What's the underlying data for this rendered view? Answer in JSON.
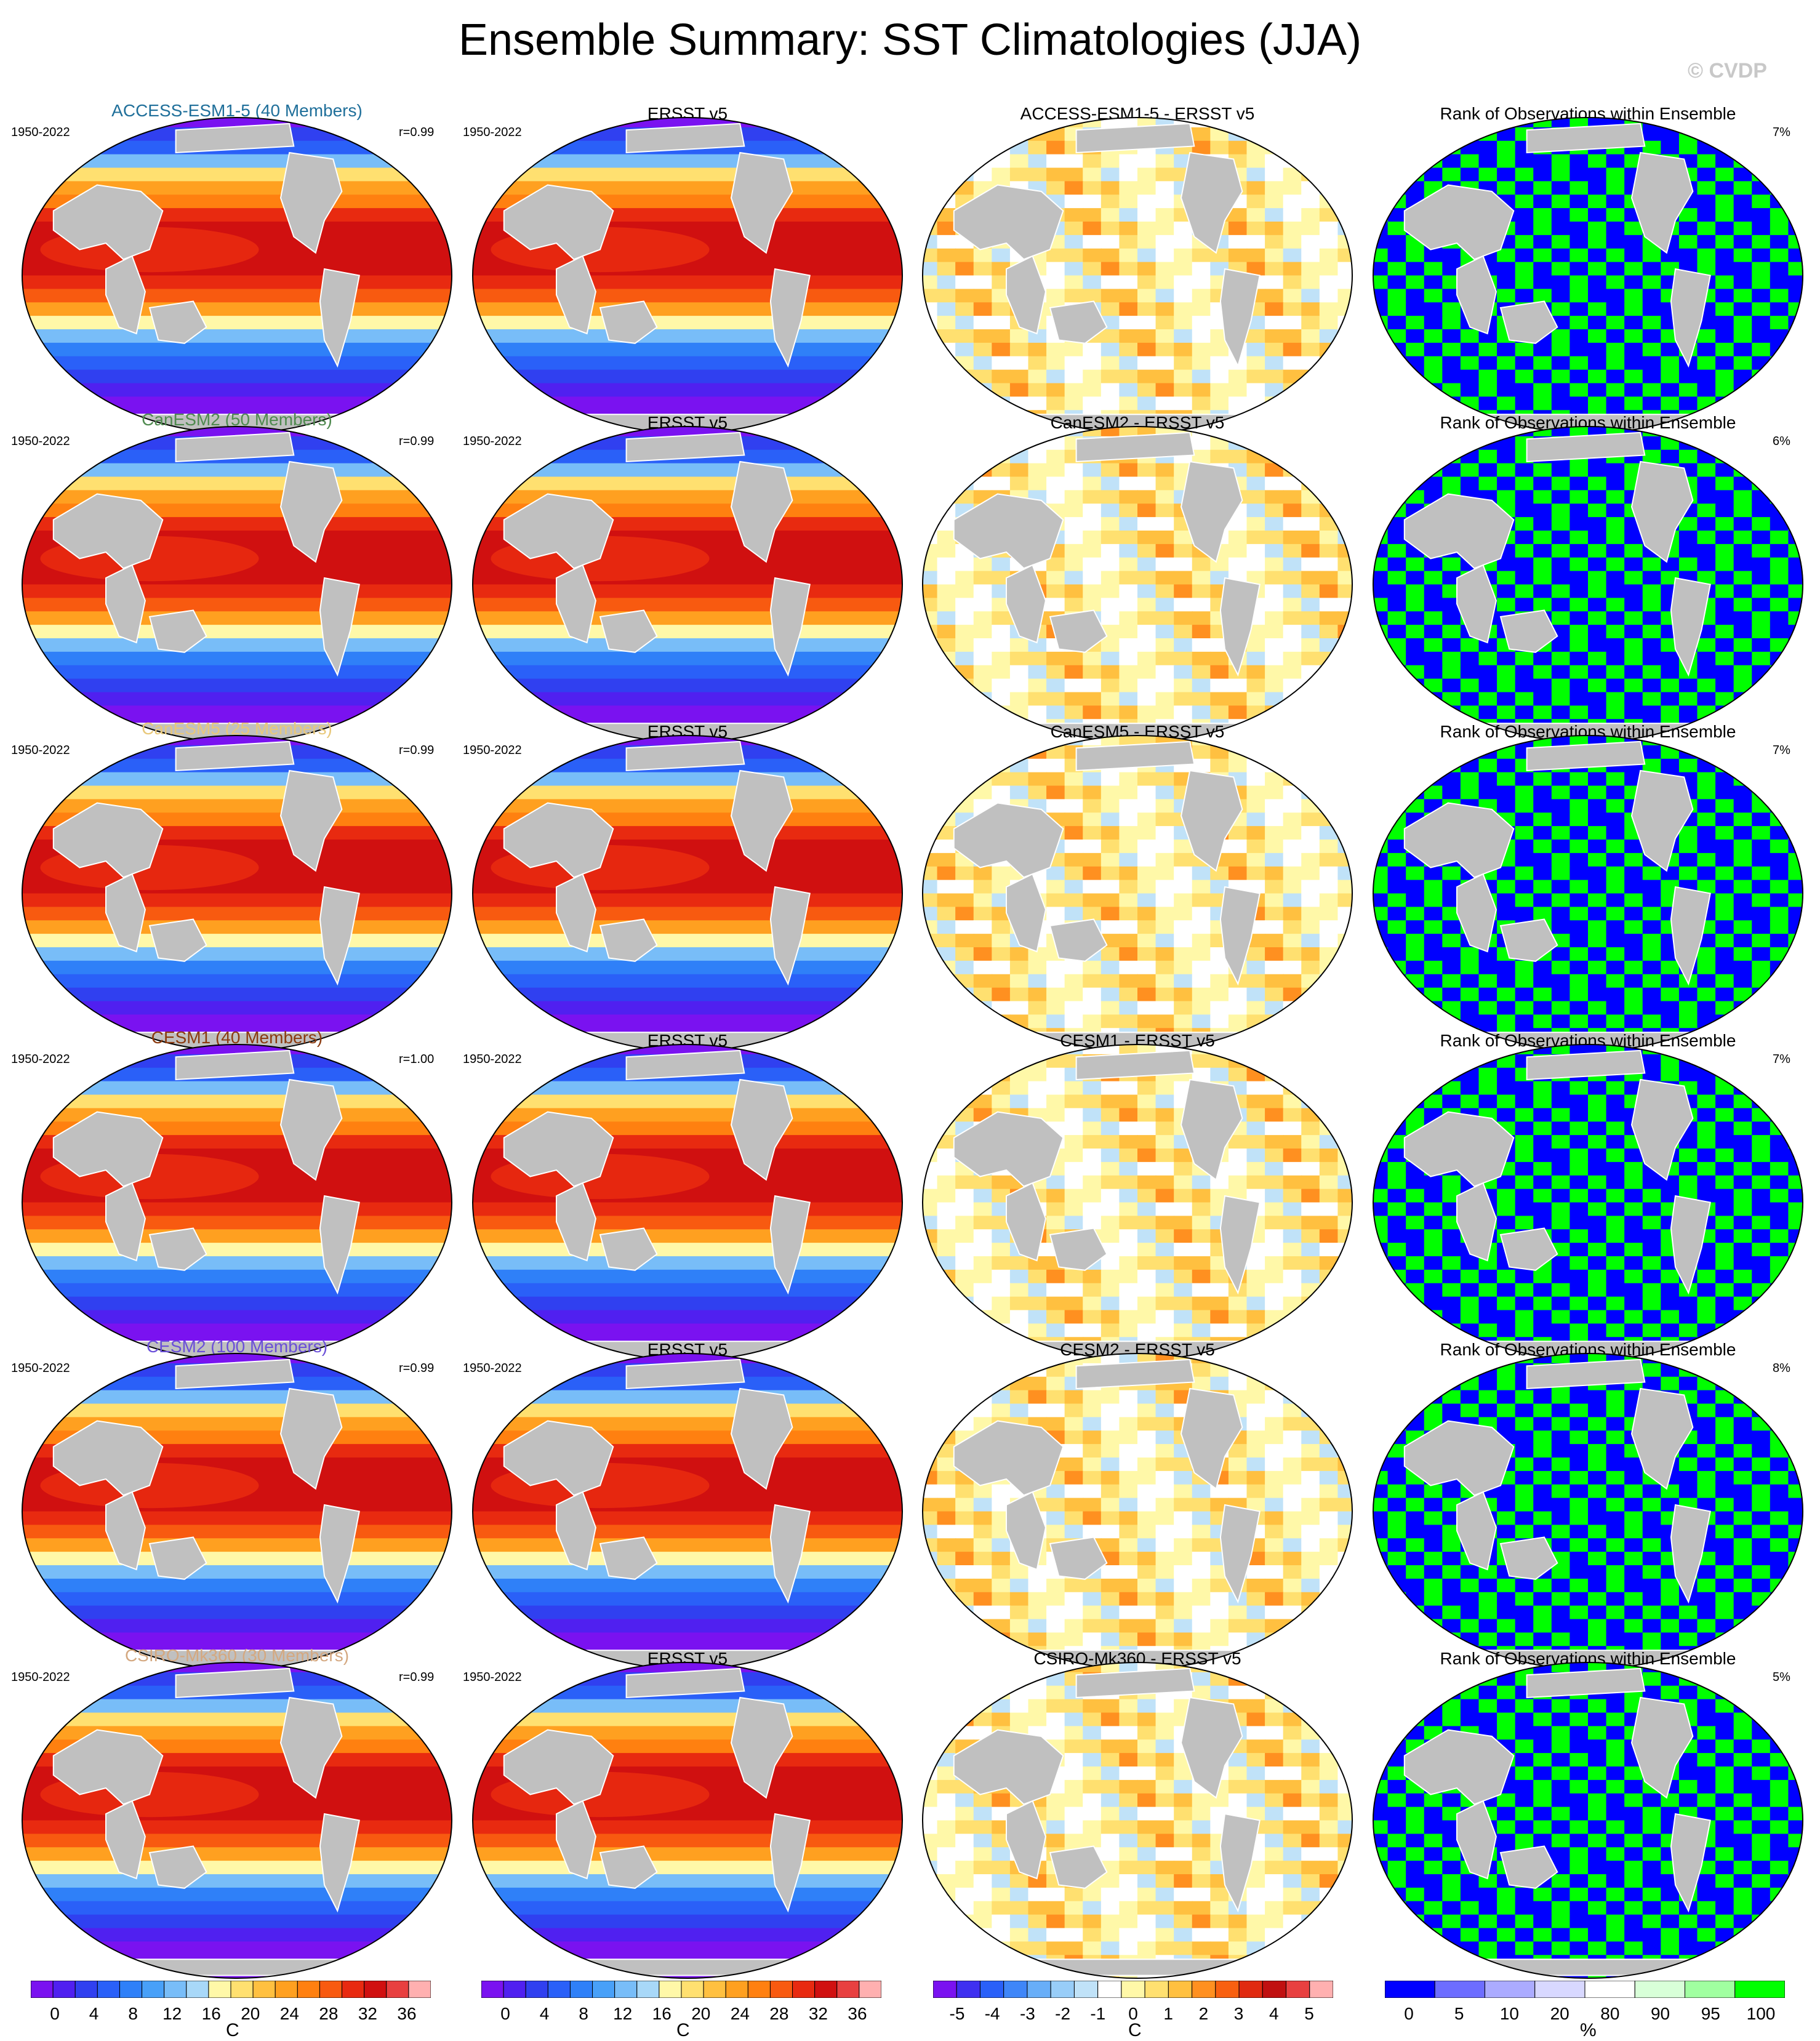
{
  "title": "Ensemble Summary: SST Climatologies (JJA)",
  "watermark": "© CVDP",
  "colors": {
    "model_title_colors": [
      "#1f6f9a",
      "#4f8a4f",
      "#e8c87a",
      "#8b3a0f",
      "#6a4fd8",
      "#d4a880"
    ],
    "land": "#c0c0c0",
    "sst_palette": [
      "#7a12f0",
      "#5020f0",
      "#3040f0",
      "#2a60f8",
      "#2f80f8",
      "#48a0f8",
      "#78bdf8",
      "#a8d8f8",
      "#fff8a8",
      "#ffe070",
      "#ffc040",
      "#ffa020",
      "#ff8010",
      "#f85a10",
      "#e82a10",
      "#d01010",
      "#e84040",
      "#ffb0b0"
    ],
    "diff_palette": [
      "#7a12f0",
      "#3f30f0",
      "#2a60f8",
      "#3f86f8",
      "#68aef8",
      "#98cdf8",
      "#c0e2f8",
      "#ffffff",
      "#fff8a8",
      "#ffe070",
      "#ffc040",
      "#ff9020",
      "#f86010",
      "#e02a10",
      "#c01010",
      "#e84040",
      "#ffb0b0"
    ],
    "rank_palette": [
      "#0000ff",
      "#6d6dff",
      "#ababff",
      "#d8d8ff",
      "#ffffff",
      "#d8ffd8",
      "#a0ffa0",
      "#00ff00"
    ]
  },
  "rows": [
    {
      "model": "ACCESS-ESM1-5 (40 Members)",
      "period": "1950-2022",
      "corr": "r=0.99",
      "obs_title": "ERSST v5",
      "obs_period": "1950-2022",
      "diff_title": "ACCESS-ESM1-5 - ERSST v5",
      "rank_title": "Rank of Observations within Ensemble",
      "rank_pct": "7%"
    },
    {
      "model": "CanESM2 (50 Members)",
      "period": "1950-2022",
      "corr": "r=0.99",
      "obs_title": "ERSST v5",
      "obs_period": "1950-2022",
      "diff_title": "CanESM2 - ERSST v5",
      "rank_title": "Rank of Observations within Ensemble",
      "rank_pct": "6%"
    },
    {
      "model": "CanESM5 (25 Members)",
      "period": "1950-2022",
      "corr": "r=0.99",
      "obs_title": "ERSST v5",
      "obs_period": "1950-2022",
      "diff_title": "CanESM5 - ERSST v5",
      "rank_title": "Rank of Observations within Ensemble",
      "rank_pct": "7%"
    },
    {
      "model": "CESM1 (40 Members)",
      "period": "1950-2022",
      "corr": "r=1.00",
      "obs_title": "ERSST v5",
      "obs_period": "1950-2022",
      "diff_title": "CESM1 - ERSST v5",
      "rank_title": "Rank of Observations within Ensemble",
      "rank_pct": "7%"
    },
    {
      "model": "CESM2 (100 Members)",
      "period": "1950-2022",
      "corr": "r=0.99",
      "obs_title": "ERSST v5",
      "obs_period": "1950-2022",
      "diff_title": "CESM2 - ERSST v5",
      "rank_title": "Rank of Observations within Ensemble",
      "rank_pct": "8%"
    },
    {
      "model": "CSIRO-Mk360 (30 Members)",
      "period": "1950-2022",
      "corr": "r=0.99",
      "obs_title": "ERSST v5",
      "obs_period": "1950-2022",
      "diff_title": "CSIRO-Mk360 - ERSST v5",
      "rank_title": "Rank of Observations within Ensemble",
      "rank_pct": "5%"
    }
  ],
  "colorbars": [
    {
      "ticks": [
        "0",
        "4",
        "8",
        "12",
        "16",
        "20",
        "24",
        "28",
        "32",
        "36"
      ],
      "unit": "C"
    },
    {
      "ticks": [
        "0",
        "4",
        "8",
        "12",
        "16",
        "20",
        "24",
        "28",
        "32",
        "36"
      ],
      "unit": "C"
    },
    {
      "ticks": [
        "-5",
        "-4",
        "-3",
        "-2",
        "-1",
        "0",
        "1",
        "2",
        "3",
        "4",
        "5"
      ],
      "unit": "C"
    },
    {
      "ticks": [
        "0",
        "5",
        "10",
        "20",
        "80",
        "90",
        "95",
        "100"
      ],
      "unit": "%"
    }
  ],
  "chart_data": [
    {
      "type": "heatmap",
      "title": "ACCESS-ESM1-5 (40 Members)",
      "xlabel": "",
      "ylabel": "",
      "range": [
        0,
        36
      ],
      "unit": "C"
    },
    {
      "type": "heatmap",
      "title": "ERSST v5",
      "range": [
        0,
        36
      ],
      "unit": "C"
    },
    {
      "type": "heatmap",
      "title": "ACCESS-ESM1-5 - ERSST v5",
      "range": [
        -5,
        5
      ],
      "unit": "C"
    },
    {
      "type": "heatmap",
      "title": "Rank of Observations within Ensemble",
      "range": [
        0,
        100
      ],
      "unit": "%"
    }
  ]
}
